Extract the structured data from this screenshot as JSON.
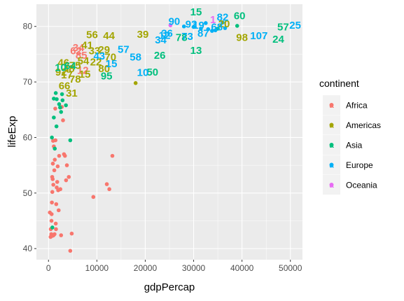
{
  "chart_data": {
    "type": "scatter",
    "xlabel": "gdpPercap",
    "ylabel": "lifeExp",
    "xlim": [
      -2500,
      52500
    ],
    "ylim": [
      38,
      84
    ],
    "x_ticks": [
      0,
      10000,
      20000,
      30000,
      40000,
      50000
    ],
    "x_tick_labels": [
      "0",
      "10000",
      "20000",
      "30000",
      "40000",
      "50000"
    ],
    "y_ticks": [
      40,
      50,
      60,
      70,
      80
    ],
    "y_tick_labels": [
      "40",
      "50",
      "60",
      "70",
      "80"
    ],
    "grid": true,
    "legend": {
      "title": "continent",
      "position": "right"
    },
    "series": [
      {
        "name": "Africa",
        "color": "#F8766D",
        "points": [
          [
            277,
            46.5
          ],
          [
            430,
            42.1
          ],
          [
            470,
            43.5
          ],
          [
            580,
            42.6
          ],
          [
            620,
            45.0
          ],
          [
            650,
            46.2
          ],
          [
            700,
            48.3
          ],
          [
            760,
            52.9
          ],
          [
            790,
            50.2
          ],
          [
            830,
            42.3
          ],
          [
            863,
            52.5
          ],
          [
            900,
            55.3
          ],
          [
            950,
            59.4
          ],
          [
            1000,
            51.5
          ],
          [
            1042,
            42.4
          ],
          [
            1100,
            58.4
          ],
          [
            1200,
            54.1
          ],
          [
            1250,
            42.6
          ],
          [
            1300,
            56.0
          ],
          [
            1400,
            65.2
          ],
          [
            1441,
            59.5
          ],
          [
            1500,
            44.5
          ],
          [
            1544,
            43.5
          ],
          [
            1600,
            48.0
          ],
          [
            1700,
            51.0
          ],
          [
            1800,
            52.0
          ],
          [
            1900,
            54.8
          ],
          [
            2000,
            50.5
          ],
          [
            2100,
            46.9
          ],
          [
            2200,
            56.7
          ],
          [
            2450,
            50.7
          ],
          [
            2600,
            42.4
          ],
          [
            2750,
            65.5
          ],
          [
            3000,
            63.1
          ],
          [
            3200,
            57.0
          ],
          [
            3400,
            56.7
          ],
          [
            3632,
            52.3
          ],
          [
            3800,
            55.0
          ],
          [
            4200,
            52.9
          ],
          [
            4500,
            39.6
          ],
          [
            4800,
            42.7
          ],
          [
            9270,
            49.3
          ],
          [
            12057,
            51.6
          ],
          [
            12570,
            50.7
          ],
          [
            13206,
            56.7
          ]
        ],
        "labels": [
          [
            5700,
            75.6,
            "62"
          ],
          [
            6200,
            76.2,
            "34"
          ],
          [
            6800,
            74.8,
            "85"
          ],
          [
            7100,
            72.1,
            "12"
          ]
        ]
      },
      {
        "name": "Americas",
        "color": "#A3A500",
        "points": [
          [
            18009,
            69.8
          ]
        ],
        "labels": [
          [
            9000,
            78.5,
            "56"
          ],
          [
            12500,
            78.3,
            "44"
          ],
          [
            19500,
            78.6,
            "39"
          ],
          [
            40000,
            78.0,
            "98"
          ],
          [
            9500,
            75.6,
            "33"
          ],
          [
            11500,
            75.8,
            "29"
          ],
          [
            12800,
            74.5,
            "70"
          ],
          [
            8000,
            76.6,
            "41"
          ],
          [
            3100,
            73.5,
            "46"
          ],
          [
            2600,
            71.8,
            "92"
          ],
          [
            3800,
            71.3,
            "17"
          ],
          [
            5500,
            73.0,
            "75"
          ],
          [
            7200,
            73.8,
            "54"
          ],
          [
            9800,
            73.6,
            "22"
          ],
          [
            11500,
            72.4,
            "80"
          ],
          [
            4200,
            72.4,
            "48"
          ],
          [
            5500,
            70.5,
            "78"
          ],
          [
            4800,
            68.0,
            "31"
          ],
          [
            3300,
            69.3,
            "66"
          ],
          [
            7500,
            71.4,
            "15"
          ],
          [
            36300,
            80.5,
            "20"
          ]
        ]
      },
      {
        "name": "Asia",
        "color": "#00BF7D",
        "points": [
          [
            1700,
            66.9
          ],
          [
            2900,
            66.7
          ],
          [
            2400,
            65.4
          ],
          [
            1100,
            63.6
          ],
          [
            2600,
            64.6
          ],
          [
            3600,
            65.8
          ],
          [
            1650,
            62.0
          ],
          [
            700,
            60.0
          ],
          [
            4500,
            59.5
          ],
          [
            1300,
            58.0
          ],
          [
            800,
            43.8
          ],
          [
            1500,
            68.0
          ],
          [
            1100,
            67.0
          ],
          [
            2200,
            66.0
          ],
          [
            2800,
            67.8
          ],
          [
            35000,
            79.6
          ],
          [
            39000,
            80.1
          ]
        ],
        "labels": [
          [
            30500,
            82.6,
            "15"
          ],
          [
            39500,
            81.9,
            "60"
          ],
          [
            48500,
            79.9,
            "57"
          ],
          [
            47500,
            77.7,
            "24"
          ],
          [
            30500,
            75.7,
            "13"
          ],
          [
            21500,
            71.8,
            "50"
          ],
          [
            23000,
            74.8,
            "26"
          ],
          [
            27500,
            78.0,
            "78"
          ],
          [
            12000,
            71.1,
            "95"
          ],
          [
            2500,
            72.6,
            "10"
          ],
          [
            4500,
            72.9,
            "64"
          ]
        ]
      },
      {
        "name": "Europe",
        "color": "#00B0F6",
        "points": [
          [
            33000,
            79.5
          ],
          [
            34500,
            79.3
          ],
          [
            32500,
            80.6
          ],
          [
            36500,
            79.7
          ],
          [
            28000,
            80.0
          ],
          [
            33800,
            79.2
          ],
          [
            31500,
            79.6
          ],
          [
            36000,
            80.7
          ],
          [
            30000,
            79.9
          ]
        ],
        "labels": [
          [
            26000,
            80.9,
            "90"
          ],
          [
            29500,
            80.4,
            "92"
          ],
          [
            32000,
            78.8,
            "87"
          ],
          [
            34800,
            79.9,
            "68"
          ],
          [
            36000,
            81.7,
            "82"
          ],
          [
            24500,
            78.8,
            "36"
          ],
          [
            23200,
            77.6,
            "34"
          ],
          [
            15500,
            75.9,
            "57"
          ],
          [
            18000,
            74.5,
            "58"
          ],
          [
            19500,
            71.7,
            "10"
          ],
          [
            24000,
            78.4,
            "12"
          ],
          [
            43500,
            78.3,
            "107"
          ],
          [
            51000,
            80.2,
            "25"
          ],
          [
            28700,
            78.2,
            "73"
          ],
          [
            31000,
            80.2,
            "19"
          ],
          [
            10500,
            74.7,
            "43"
          ],
          [
            13000,
            73.3,
            "15"
          ]
        ]
      },
      {
        "name": "Oceania",
        "color": "#E76BF3",
        "points": [
          [
            25200,
            80.2
          ]
        ],
        "labels": [
          [
            34000,
            81.2,
            "1"
          ]
        ]
      }
    ]
  }
}
